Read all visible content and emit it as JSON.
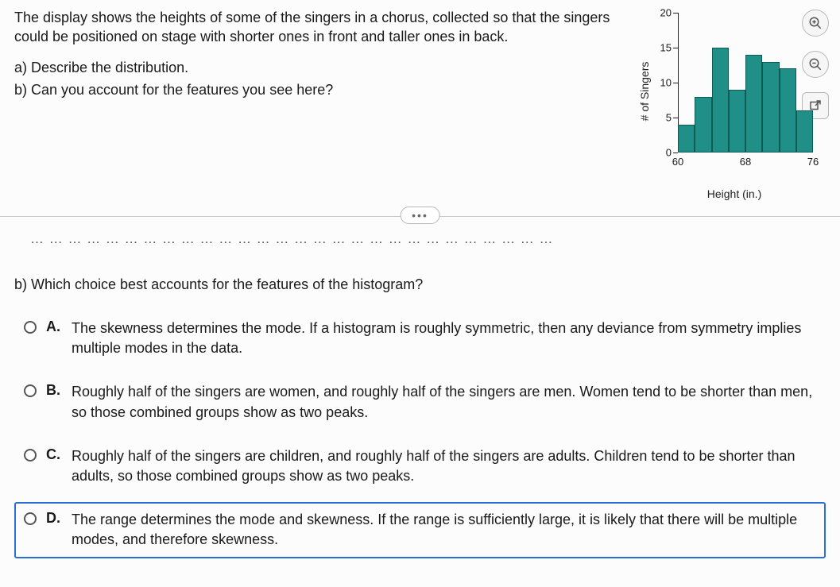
{
  "question": {
    "intro": "The display shows the heights of some of the singers in a chorus, collected so that the singers could be positioned on stage with shorter ones in front and taller ones in back.",
    "part_a": "a) Describe the distribution.",
    "part_b_top": "b) Can you account for the features you see here?"
  },
  "cutoff_text": "… … …   … … … … …   … … … …   … …   … … … …   … … … …   … …   … … … …",
  "histogram": {
    "y_label": "# of Singers",
    "x_label": "Height (in.)",
    "y_ticks": [
      0,
      5,
      10,
      15,
      20
    ],
    "y_max": 20,
    "x_ticks": [
      {
        "pos": 0.0,
        "label": "60"
      },
      {
        "pos": 0.5,
        "label": "68"
      },
      {
        "pos": 1.0,
        "label": "76"
      }
    ],
    "bars": [
      4,
      8,
      15,
      9,
      14,
      13,
      12,
      6
    ],
    "bar_color": "#1f8f88",
    "bar_border": "#0d5b55"
  },
  "dots": "•••",
  "part_b": {
    "prompt": "b) Which choice best accounts for the features of the histogram?",
    "choices": [
      {
        "key": "A.",
        "text": "The skewness determines the mode. If a histogram is roughly symmetric, then any deviance from symmetry implies multiple modes in the data.",
        "selected": false
      },
      {
        "key": "B.",
        "text": "Roughly half of the singers are women, and roughly half of the singers are men. Women tend to be shorter than men, so those combined groups show as two peaks.",
        "selected": false
      },
      {
        "key": "C.",
        "text": "Roughly half of the singers are children, and roughly half of the singers are adults. Children tend to be shorter than adults, so those combined groups show as two peaks.",
        "selected": false
      },
      {
        "key": "D.",
        "text": "The range determines the mode and skewness. If the range is sufficiently large, it is likely that there will be multiple modes, and therefore skewness.",
        "selected": true
      }
    ]
  },
  "icons": {
    "zoom_in": "zoom-in-icon",
    "zoom_out": "zoom-out-icon",
    "popout": "popout-icon"
  }
}
